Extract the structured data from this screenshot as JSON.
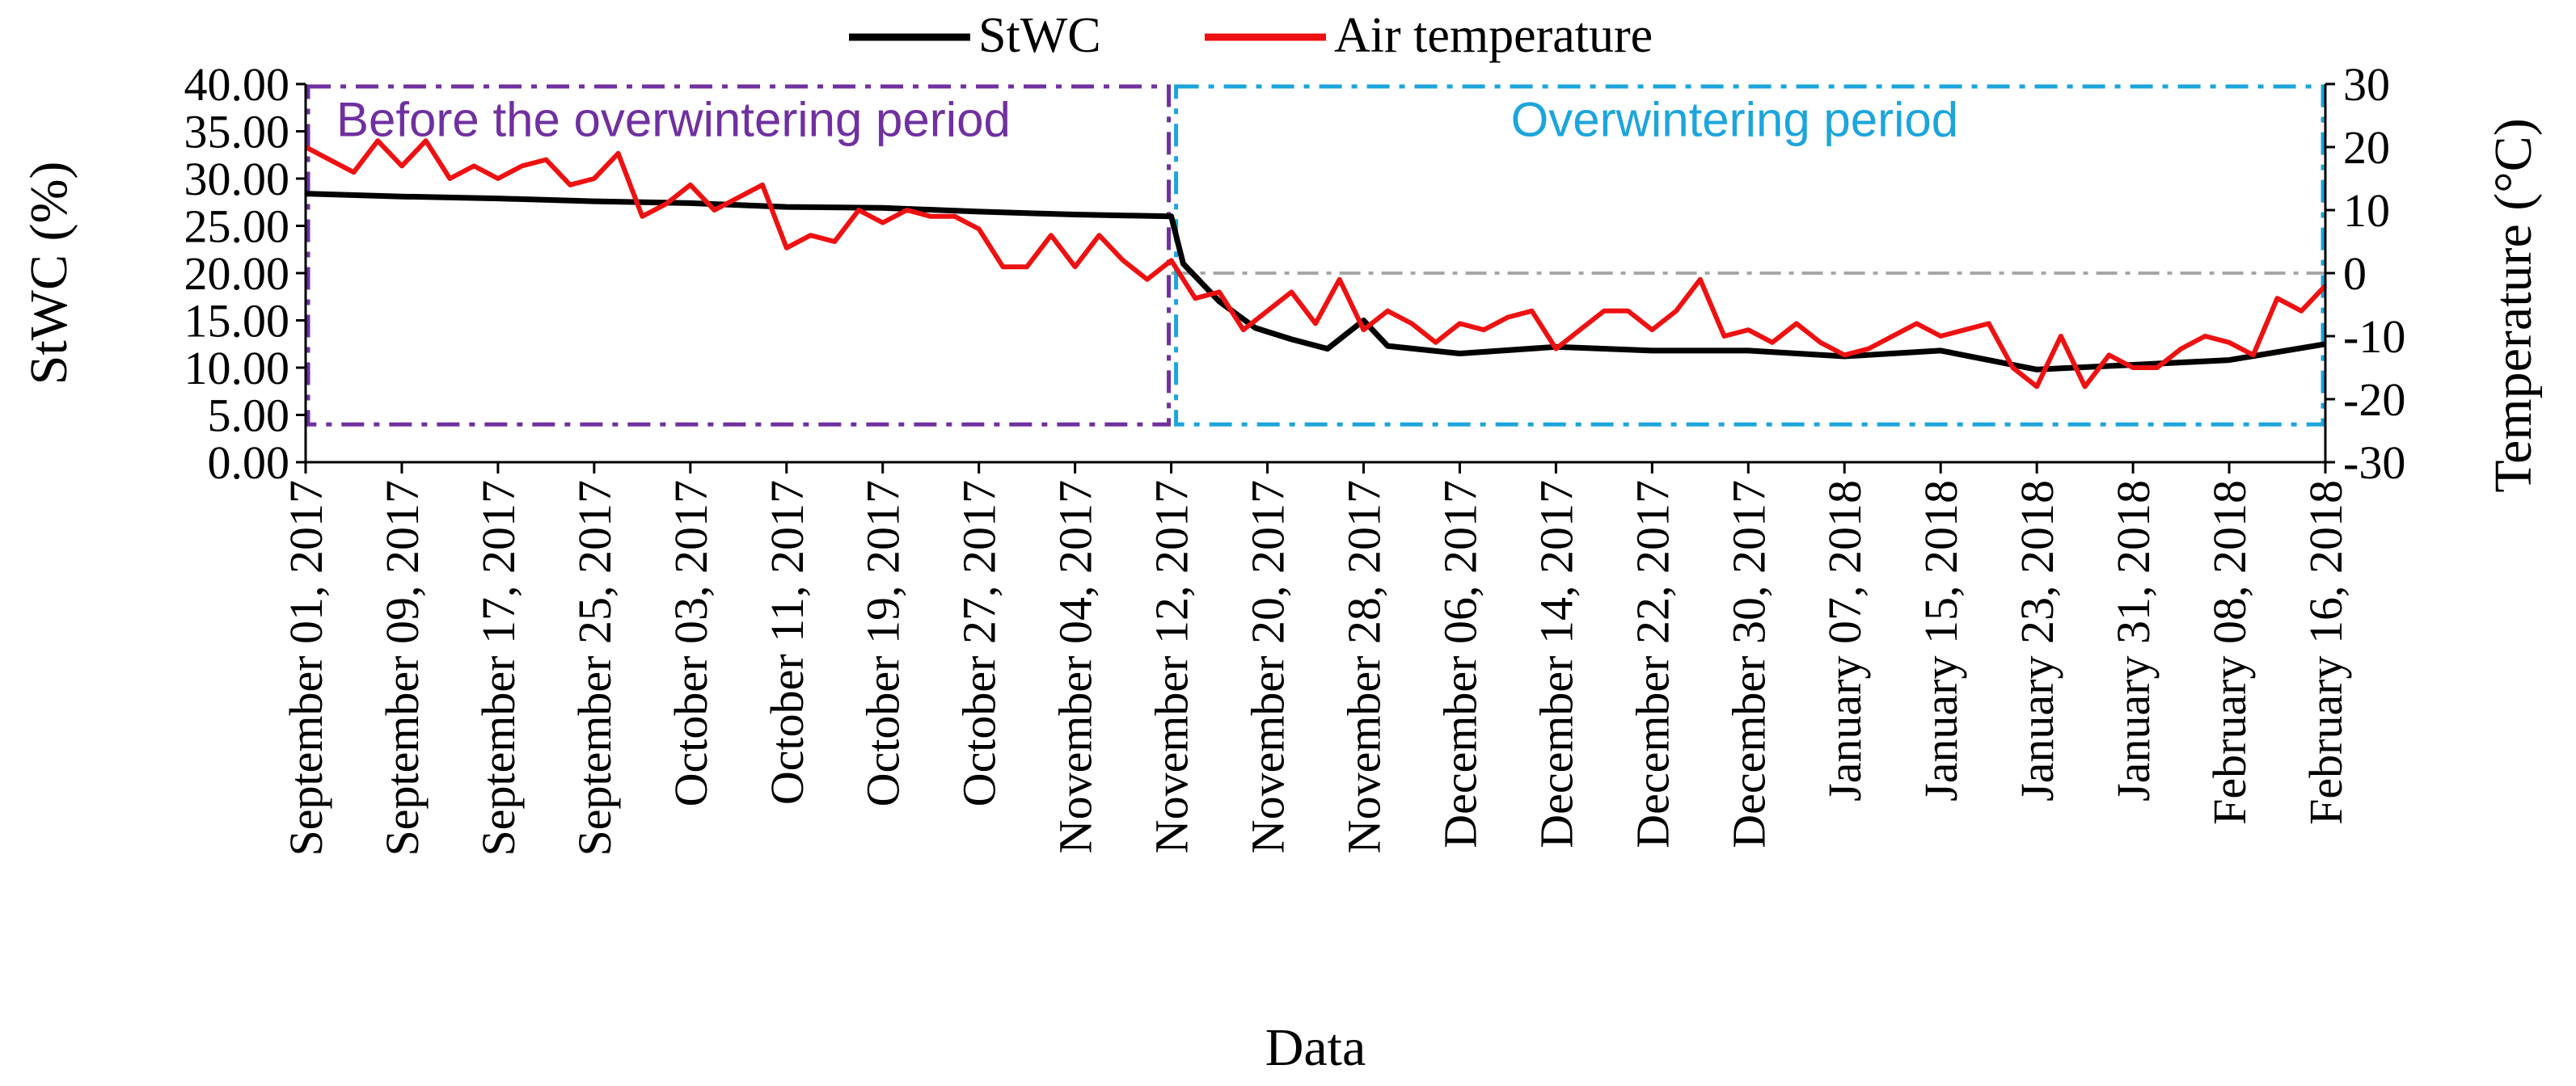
{
  "chart_data": {
    "type": "line",
    "xlabel": "Data",
    "ylabel_left": "StWC (%)",
    "ylabel_right": "Temperature (°C)",
    "ylim_left": [
      0,
      40
    ],
    "ylim_right": [
      -30,
      30
    ],
    "y_ticks_left": [
      "0.00",
      "5.00",
      "10.00",
      "15.00",
      "20.00",
      "25.00",
      "30.00",
      "35.00",
      "40.00"
    ],
    "y_ticks_right": [
      "-30",
      "-20",
      "-10",
      "0",
      "10",
      "20",
      "30"
    ],
    "x_start": "2017-09-01",
    "x_end": "2018-02-16",
    "x_tick_labels": [
      "September 01, 2017",
      "September 09, 2017",
      "September 17, 2017",
      "September 25, 2017",
      "October 03, 2017",
      "October 11, 2017",
      "October 19, 2017",
      "October 27, 2017",
      "November 04, 2017",
      "November 12, 2017",
      "November 20, 2017",
      "November 28, 2017",
      "December 06, 2017",
      "December 14, 2017",
      "December 22, 2017",
      "December 30, 2017",
      "January 07, 2018",
      "January 15, 2018",
      "January 23, 2018",
      "January 31, 2018",
      "February 08, 2018",
      "February 16, 2018"
    ],
    "legend": {
      "placement": "top"
    },
    "series": [
      {
        "name": "StWC",
        "axis": "left",
        "color": "#000000",
        "points": [
          [
            "2017-09-01",
            28.4
          ],
          [
            "2017-09-09",
            28.1
          ],
          [
            "2017-09-17",
            27.9
          ],
          [
            "2017-09-25",
            27.6
          ],
          [
            "2017-10-03",
            27.4
          ],
          [
            "2017-10-11",
            27.0
          ],
          [
            "2017-10-19",
            26.9
          ],
          [
            "2017-10-27",
            26.5
          ],
          [
            "2017-11-04",
            26.2
          ],
          [
            "2017-11-12",
            26.0
          ],
          [
            "2017-11-13",
            21.0
          ],
          [
            "2017-11-16",
            17.0
          ],
          [
            "2017-11-19",
            14.2
          ],
          [
            "2017-11-22",
            13.0
          ],
          [
            "2017-11-25",
            12.0
          ],
          [
            "2017-11-28",
            15.0
          ],
          [
            "2017-11-30",
            12.3
          ],
          [
            "2017-12-06",
            11.5
          ],
          [
            "2017-12-14",
            12.2
          ],
          [
            "2017-12-22",
            11.8
          ],
          [
            "2017-12-30",
            11.8
          ],
          [
            "2018-01-07",
            11.2
          ],
          [
            "2018-01-15",
            11.8
          ],
          [
            "2018-01-23",
            9.8
          ],
          [
            "2018-01-31",
            10.3
          ],
          [
            "2018-02-08",
            10.8
          ],
          [
            "2018-02-16",
            12.5
          ]
        ]
      },
      {
        "name": "Air temperature",
        "axis": "right",
        "color": "#ee1111",
        "points": [
          [
            "2017-09-01",
            20
          ],
          [
            "2017-09-03",
            18
          ],
          [
            "2017-09-05",
            16
          ],
          [
            "2017-09-07",
            21
          ],
          [
            "2017-09-09",
            17
          ],
          [
            "2017-09-11",
            21
          ],
          [
            "2017-09-13",
            15
          ],
          [
            "2017-09-15",
            17
          ],
          [
            "2017-09-17",
            15
          ],
          [
            "2017-09-19",
            17
          ],
          [
            "2017-09-21",
            18
          ],
          [
            "2017-09-23",
            14
          ],
          [
            "2017-09-25",
            15
          ],
          [
            "2017-09-27",
            19
          ],
          [
            "2017-09-29",
            9
          ],
          [
            "2017-10-01",
            11
          ],
          [
            "2017-10-03",
            14
          ],
          [
            "2017-10-05",
            10
          ],
          [
            "2017-10-07",
            12
          ],
          [
            "2017-10-09",
            14
          ],
          [
            "2017-10-11",
            4
          ],
          [
            "2017-10-13",
            6
          ],
          [
            "2017-10-15",
            5
          ],
          [
            "2017-10-17",
            10
          ],
          [
            "2017-10-19",
            8
          ],
          [
            "2017-10-21",
            10
          ],
          [
            "2017-10-23",
            9
          ],
          [
            "2017-10-25",
            9
          ],
          [
            "2017-10-27",
            7
          ],
          [
            "2017-10-29",
            1
          ],
          [
            "2017-10-31",
            1
          ],
          [
            "2017-11-02",
            6
          ],
          [
            "2017-11-04",
            1
          ],
          [
            "2017-11-06",
            6
          ],
          [
            "2017-11-08",
            2
          ],
          [
            "2017-11-10",
            -1
          ],
          [
            "2017-11-12",
            2
          ],
          [
            "2017-11-14",
            -4
          ],
          [
            "2017-11-16",
            -3
          ],
          [
            "2017-11-18",
            -9
          ],
          [
            "2017-11-20",
            -6
          ],
          [
            "2017-11-22",
            -3
          ],
          [
            "2017-11-24",
            -8
          ],
          [
            "2017-11-26",
            -1
          ],
          [
            "2017-11-28",
            -9
          ],
          [
            "2017-11-30",
            -6
          ],
          [
            "2017-12-02",
            -8
          ],
          [
            "2017-12-04",
            -11
          ],
          [
            "2017-12-06",
            -8
          ],
          [
            "2017-12-08",
            -9
          ],
          [
            "2017-12-10",
            -7
          ],
          [
            "2017-12-12",
            -6
          ],
          [
            "2017-12-14",
            -12
          ],
          [
            "2017-12-16",
            -9
          ],
          [
            "2017-12-18",
            -6
          ],
          [
            "2017-12-20",
            -6
          ],
          [
            "2017-12-22",
            -9
          ],
          [
            "2017-12-24",
            -6
          ],
          [
            "2017-12-26",
            -1
          ],
          [
            "2017-12-28",
            -10
          ],
          [
            "2017-12-30",
            -9
          ],
          [
            "2018-01-01",
            -11
          ],
          [
            "2018-01-03",
            -8
          ],
          [
            "2018-01-05",
            -11
          ],
          [
            "2018-01-07",
            -13
          ],
          [
            "2018-01-09",
            -12
          ],
          [
            "2018-01-11",
            -10
          ],
          [
            "2018-01-13",
            -8
          ],
          [
            "2018-01-15",
            -10
          ],
          [
            "2018-01-17",
            -9
          ],
          [
            "2018-01-19",
            -8
          ],
          [
            "2018-01-21",
            -15
          ],
          [
            "2018-01-23",
            -18
          ],
          [
            "2018-01-25",
            -10
          ],
          [
            "2018-01-27",
            -18
          ],
          [
            "2018-01-29",
            -13
          ],
          [
            "2018-01-31",
            -15
          ],
          [
            "2018-02-02",
            -15
          ],
          [
            "2018-02-04",
            -12
          ],
          [
            "2018-02-06",
            -10
          ],
          [
            "2018-02-08",
            -11
          ],
          [
            "2018-02-10",
            -13
          ],
          [
            "2018-02-12",
            -4
          ],
          [
            "2018-02-14",
            -6
          ],
          [
            "2018-02-16",
            -2
          ]
        ]
      }
    ],
    "annotations": [
      {
        "text": "Before the overwintering period",
        "color": "#7030a0",
        "region_start": "2017-09-01",
        "region_end": "2017-11-12",
        "y_bottom": 4,
        "y_top": 40
      },
      {
        "text": "Overwintering period",
        "color": "#1ca5dc",
        "region_start": "2017-11-12",
        "region_end": "2018-02-16",
        "y_bottom": 4,
        "y_top": 40
      }
    ],
    "reference_line": {
      "axis": "right",
      "value": 0,
      "color": "#a6a6a6",
      "from": "2017-11-12",
      "to": "2018-02-16"
    }
  }
}
